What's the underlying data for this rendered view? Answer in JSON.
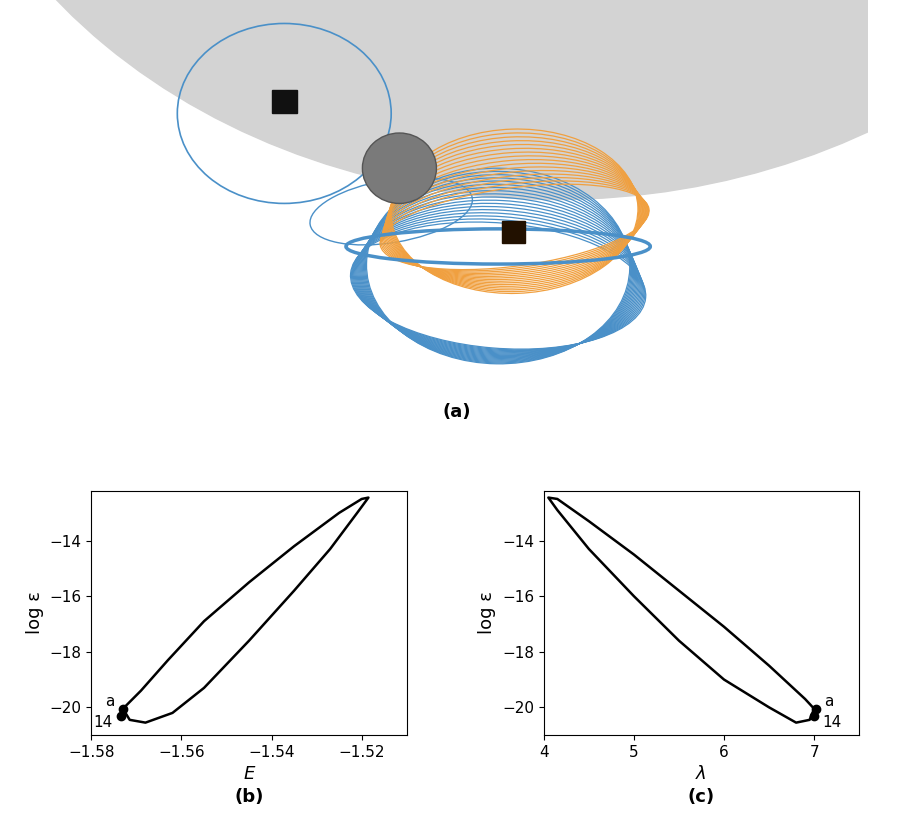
{
  "illustration": {
    "label": "(a)"
  },
  "chart_data": [
    {
      "type": "line",
      "panel_label": "(b)",
      "x_label": "E",
      "y_label": "log ε",
      "x": [
        -1.573,
        -1.5715,
        -1.568,
        -1.562,
        -1.555,
        -1.545,
        -1.535,
        -1.527,
        -1.521,
        -1.5185,
        -1.52,
        -1.525,
        -1.535,
        -1.545,
        -1.555,
        -1.563,
        -1.569,
        -1.573
      ],
      "values": [
        -20.05,
        -20.45,
        -20.55,
        -20.2,
        -19.3,
        -17.6,
        -15.8,
        -14.3,
        -13.0,
        -12.45,
        -12.5,
        -13.0,
        -14.2,
        -15.5,
        -16.9,
        -18.3,
        -19.4,
        -20.05
      ],
      "color": "#000000",
      "xlim": [
        -1.58,
        -1.51
      ],
      "ylim": [
        -21,
        -12.2
      ],
      "xticks": [
        {
          "value": -1.58,
          "label": "−1.58"
        },
        {
          "value": -1.56,
          "label": "−1.56"
        },
        {
          "value": -1.54,
          "label": "−1.54"
        },
        {
          "value": -1.52,
          "label": "−1.52"
        }
      ],
      "yticks": [
        {
          "value": -20,
          "label": "−20"
        },
        {
          "value": -18,
          "label": "−18"
        },
        {
          "value": -16,
          "label": "−16"
        },
        {
          "value": -14,
          "label": "−14"
        }
      ],
      "annotations": [
        {
          "text": "a",
          "x": -1.573,
          "y": -20.05
        },
        {
          "text": "14",
          "x": -1.5735,
          "y": -20.3
        }
      ]
    },
    {
      "type": "line",
      "panel_label": "(c)",
      "x_label": "λ",
      "y_label": "log ε",
      "x": [
        7.0,
        6.95,
        6.8,
        6.5,
        6.0,
        5.5,
        5.0,
        4.5,
        4.15,
        4.05,
        4.15,
        4.5,
        5.0,
        5.5,
        6.0,
        6.5,
        6.9,
        7.0
      ],
      "values": [
        -20.05,
        -20.45,
        -20.55,
        -20.0,
        -19.0,
        -17.6,
        -16.0,
        -14.3,
        -12.9,
        -12.45,
        -12.5,
        -13.3,
        -14.5,
        -15.8,
        -17.1,
        -18.5,
        -19.7,
        -20.05
      ],
      "color": "#000000",
      "xlim": [
        4,
        7.5
      ],
      "ylim": [
        -21,
        -12.2
      ],
      "xticks": [
        4,
        5,
        6,
        7
      ],
      "yticks": [
        {
          "value": -20,
          "label": "−20"
        },
        {
          "value": -18,
          "label": "−18"
        },
        {
          "value": -16,
          "label": "−16"
        },
        {
          "value": -14,
          "label": "−14"
        }
      ],
      "annotations": [
        {
          "text": "a",
          "x": 7.02,
          "y": -20.05
        },
        {
          "text": "14",
          "x": 7.0,
          "y": -20.3
        }
      ]
    }
  ]
}
